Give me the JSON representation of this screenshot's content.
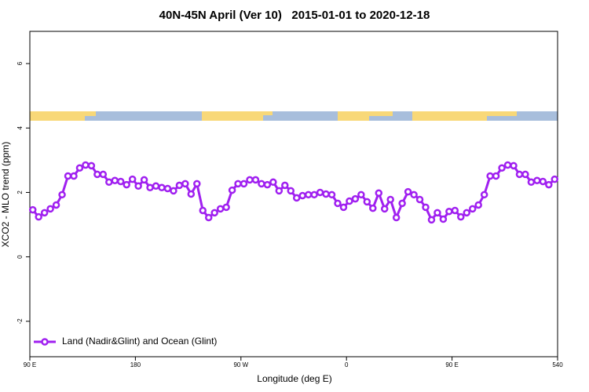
{
  "chart_data": {
    "type": "line",
    "title": "40N-45N April (Ver 10)   2015-01-01 to 2020-12-18",
    "xlabel": "Longitude (deg E)",
    "ylabel": "XCO2 - MLO trend (ppm)",
    "xlim": [
      90,
      540
    ],
    "ylim": [
      -3.1,
      7.0
    ],
    "xticks": [
      {
        "value": 90,
        "label": "90 E"
      },
      180,
      {
        "value": 270,
        "label": "90 W"
      },
      {
        "value": 360,
        "label": "0"
      },
      {
        "value": 450,
        "label": "90 E"
      },
      540
    ],
    "yticks": [
      -2,
      0,
      2,
      4,
      6
    ],
    "legend": "bottom-left",
    "x": [
      92.5,
      97.5,
      102.5,
      107.5,
      112.5,
      117.5,
      122.5,
      127.5,
      132.5,
      137.5,
      142.5,
      147.5,
      152.5,
      157.5,
      162.5,
      167.5,
      172.5,
      177.5,
      182.5,
      187.5,
      192.5,
      197.5,
      202.5,
      207.5,
      212.5,
      217.5,
      222.5,
      227.5,
      232.5,
      237.5,
      242.5,
      247.5,
      252.5,
      257.5,
      262.5,
      267.5,
      272.5,
      277.5,
      282.5,
      287.5,
      292.5,
      297.5,
      302.5,
      307.5,
      312.5,
      317.5,
      322.5,
      327.5,
      332.5,
      337.5,
      342.5,
      347.5,
      352.5,
      357.5,
      362.5,
      367.5,
      372.5,
      377.5,
      382.5,
      387.5,
      392.5,
      397.5,
      402.5,
      407.5,
      412.5,
      417.5,
      422.5,
      427.5,
      432.5,
      437.5,
      442.5,
      447.5,
      452.5,
      457.5,
      462.5,
      467.5,
      472.5,
      477.5,
      482.5,
      487.5,
      492.5,
      497.5,
      502.5,
      507.5,
      512.5,
      517.5,
      522.5,
      527.5,
      532.5,
      537.5
    ],
    "series": [
      {
        "name": "Land (Nadir&Glint) and Ocean (Glint)",
        "color": "#a020f0",
        "values": [
          1.46,
          1.24,
          1.37,
          1.49,
          1.61,
          1.93,
          2.51,
          2.51,
          2.76,
          2.85,
          2.83,
          2.56,
          2.56,
          2.32,
          2.37,
          2.34,
          2.24,
          2.41,
          2.2,
          2.39,
          2.15,
          2.2,
          2.15,
          2.12,
          2.05,
          2.22,
          2.27,
          1.95,
          2.27,
          1.44,
          1.22,
          1.37,
          1.49,
          1.54,
          2.07,
          2.27,
          2.27,
          2.39,
          2.39,
          2.27,
          2.24,
          2.32,
          2.05,
          2.22,
          2.05,
          1.83,
          1.9,
          1.93,
          1.93,
          2.0,
          1.95,
          1.93,
          1.66,
          1.54,
          1.73,
          1.8,
          1.93,
          1.71,
          1.51,
          1.98,
          1.49,
          1.78,
          1.22,
          1.66,
          2.02,
          1.93,
          1.78,
          1.54,
          1.15,
          1.37,
          1.17,
          1.41,
          1.44,
          1.24,
          1.37,
          1.49,
          1.61,
          1.93,
          2.51,
          2.51,
          2.76,
          2.85,
          2.83,
          2.56,
          2.56,
          2.32,
          2.37,
          2.34,
          2.24,
          2.41
        ]
      }
    ]
  }
}
